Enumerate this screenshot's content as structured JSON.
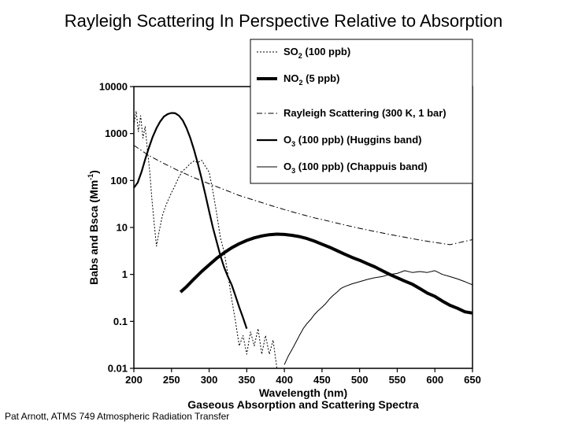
{
  "slide_title": "Rayleigh Scattering In Perspective Relative to Absorption",
  "footer": "Pat Arnott, ATMS 749 Atmospheric Radiation Transfer",
  "chart_data": {
    "type": "line",
    "title": "",
    "subtitle": "Gaseous Absorption and Scattering Spectra",
    "xlabel": "Wavelength (nm)",
    "ylabel_main": "Babs and Bsca (Mm",
    "ylabel_sup": "-1",
    "ylabel_end": ")",
    "yscale": "log",
    "xlim": [
      200,
      650
    ],
    "ylim": [
      0.01,
      10000
    ],
    "grid": false,
    "legend_position": "top-right",
    "x_ticks": [
      "200",
      "250",
      "300",
      "350",
      "400",
      "450",
      "500",
      "550",
      "600",
      "650"
    ],
    "y_ticks": [
      "0.01",
      "0.1",
      "1",
      "10",
      "100",
      "1000",
      "10000"
    ],
    "series": [
      {
        "name_main": "SO",
        "name_sub": "2",
        "name_rest": " (100 ppb)",
        "style": "dotted-thin",
        "x": [
          200,
          203,
          206,
          209,
          212,
          215,
          218,
          221,
          224,
          227,
          230,
          234,
          238,
          242,
          246,
          250,
          255,
          260,
          265,
          270,
          275,
          280,
          285,
          290,
          295,
          300,
          305,
          310,
          315,
          320,
          325,
          330,
          335,
          340,
          345,
          350,
          355,
          360,
          365,
          370,
          375,
          380,
          385,
          390
        ],
        "y": [
          1500,
          3000,
          1100,
          2400,
          800,
          1400,
          450,
          160,
          40,
          12,
          4,
          9,
          18,
          28,
          40,
          55,
          80,
          120,
          160,
          190,
          230,
          260,
          240,
          270,
          200,
          150,
          60,
          20,
          6,
          3,
          1,
          0.3,
          0.1,
          0.03,
          0.05,
          0.02,
          0.06,
          0.03,
          0.07,
          0.02,
          0.05,
          0.02,
          0.04,
          0.01
        ]
      },
      {
        "name_main": "NO",
        "name_sub": "2",
        "name_rest": " (5 ppb)",
        "style": "thick",
        "x": [
          262,
          270,
          280,
          290,
          300,
          310,
          320,
          330,
          340,
          350,
          360,
          370,
          380,
          390,
          400,
          410,
          420,
          430,
          440,
          450,
          460,
          470,
          480,
          490,
          500,
          510,
          520,
          530,
          540,
          550,
          560,
          570,
          580,
          590,
          600,
          610,
          620,
          630,
          640,
          650
        ],
        "y": [
          0.42,
          0.55,
          0.8,
          1.15,
          1.6,
          2.2,
          2.9,
          3.7,
          4.5,
          5.3,
          6.0,
          6.6,
          7.0,
          7.2,
          7.1,
          6.8,
          6.4,
          5.8,
          5.1,
          4.4,
          3.8,
          3.2,
          2.7,
          2.3,
          2.0,
          1.7,
          1.45,
          1.2,
          1.0,
          0.85,
          0.72,
          0.62,
          0.5,
          0.4,
          0.34,
          0.27,
          0.22,
          0.19,
          0.16,
          0.15
        ]
      },
      {
        "name_main": "Rayleigh Scattering (300 K, 1 bar)",
        "name_sub": "",
        "name_rest": "",
        "style": "dash-dot",
        "formula": "lambda^-4",
        "x": [
          200,
          220,
          240,
          260,
          280,
          300,
          320,
          340,
          360,
          380,
          400,
          420,
          440,
          460,
          480,
          500,
          520,
          540,
          560,
          580,
          600,
          620,
          650
        ],
        "y": [
          560,
          340,
          230,
          160,
          115,
          85,
          64,
          48,
          38,
          30,
          24,
          19.5,
          16,
          13.5,
          11.3,
          9.6,
          8.2,
          7.1,
          6.2,
          5.4,
          4.8,
          4.3,
          5.5
        ]
      },
      {
        "name_main": "O",
        "name_sub": "3",
        "name_rest": " (100 ppb) (Huggins band)",
        "style": "solid-medium",
        "x": [
          200,
          205,
          210,
          215,
          220,
          225,
          230,
          235,
          240,
          245,
          250,
          255,
          260,
          265,
          270,
          275,
          280,
          285,
          290,
          295,
          300,
          305,
          310,
          315,
          320,
          325,
          330,
          335,
          340,
          345,
          350
        ],
        "y": [
          70,
          90,
          150,
          280,
          500,
          850,
          1300,
          1800,
          2300,
          2600,
          2750,
          2700,
          2400,
          1900,
          1300,
          800,
          450,
          230,
          110,
          50,
          22,
          10,
          5,
          2.5,
          1.4,
          0.9,
          0.6,
          0.35,
          0.2,
          0.12,
          0.07
        ]
      },
      {
        "name_main": "O",
        "name_sub": "3",
        "name_rest": " (100 ppb) (Chappuis band)",
        "style": "solid-thin",
        "x": [
          400,
          405,
          410,
          415,
          420,
          425,
          430,
          435,
          440,
          445,
          450,
          455,
          460,
          465,
          470,
          475,
          480,
          490,
          500,
          510,
          520,
          530,
          540,
          550,
          560,
          570,
          580,
          590,
          600,
          610,
          620,
          630,
          640,
          650
        ],
        "y": [
          0.012,
          0.018,
          0.025,
          0.035,
          0.05,
          0.07,
          0.09,
          0.11,
          0.14,
          0.17,
          0.2,
          0.24,
          0.3,
          0.36,
          0.42,
          0.5,
          0.55,
          0.63,
          0.7,
          0.78,
          0.85,
          0.9,
          1.0,
          1.05,
          1.2,
          1.1,
          1.15,
          1.1,
          1.2,
          1.0,
          0.9,
          0.8,
          0.7,
          0.6
        ]
      }
    ]
  }
}
